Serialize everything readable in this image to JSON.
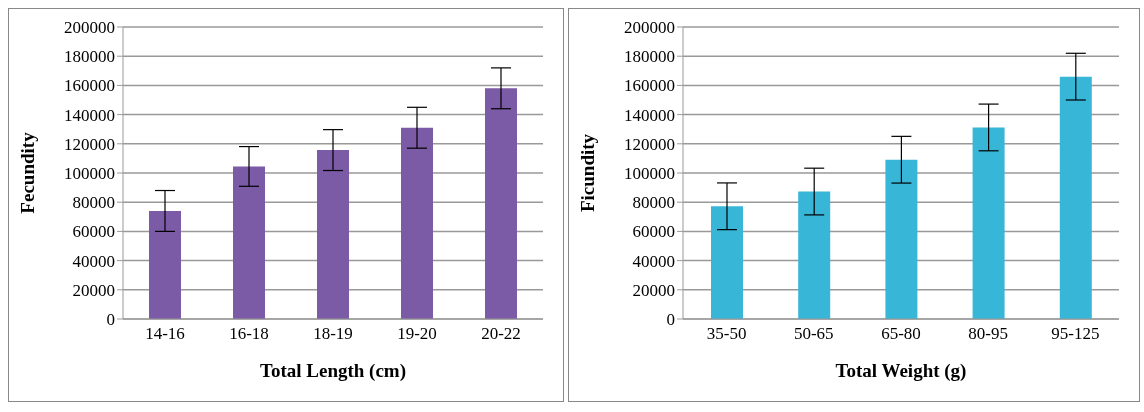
{
  "chart_data": [
    {
      "type": "bar",
      "xlabel": "Total Length (cm)",
      "ylabel": "Fecundity",
      "categories": [
        "14-16",
        "16-18",
        "18-19",
        "19-20",
        "20-22"
      ],
      "values": [
        74000,
        104500,
        115700,
        131000,
        158000
      ],
      "errors": [
        14000,
        13600,
        14000,
        14000,
        14000
      ],
      "color": "#7b5aa6",
      "ylim": [
        0,
        200000
      ],
      "yticks": [
        0,
        20000,
        40000,
        60000,
        80000,
        100000,
        120000,
        140000,
        160000,
        180000,
        200000
      ],
      "grid": "y"
    },
    {
      "type": "bar",
      "xlabel": "Total Weight (g)",
      "ylabel": "Ficundity",
      "categories": [
        "35-50",
        "50-65",
        "65-80",
        "80-95",
        "95-125"
      ],
      "values": [
        77200,
        87300,
        109100,
        131200,
        166000
      ],
      "errors": [
        16000,
        16000,
        16000,
        16000,
        16000
      ],
      "color": "#38b6d8",
      "ylim": [
        0,
        200000
      ],
      "yticks": [
        0,
        20000,
        40000,
        60000,
        80000,
        100000,
        120000,
        140000,
        160000,
        180000,
        200000
      ],
      "grid": "y"
    }
  ]
}
